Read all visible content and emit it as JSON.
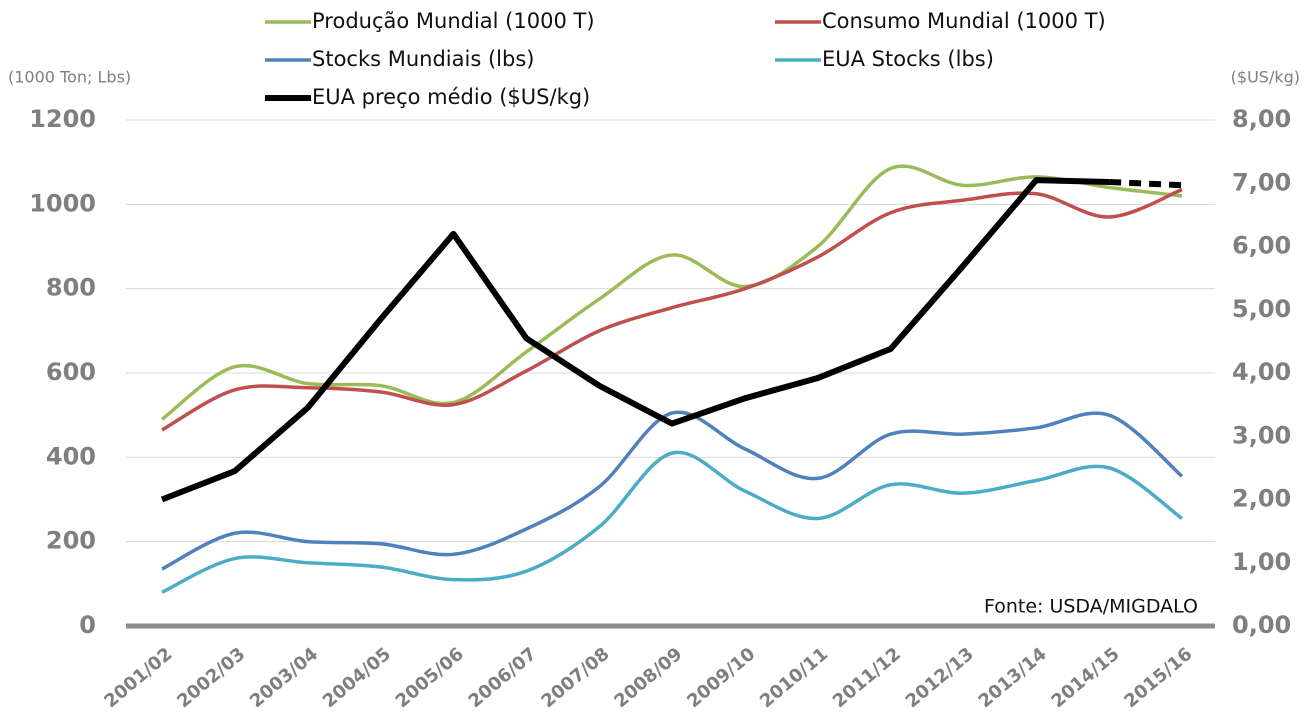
{
  "chart_data": {
    "type": "line",
    "y_label": "(1000 Ton; Lbs)",
    "y2_label": "($US/kg)",
    "annotation": "Fonte: USDA/MIGDALO",
    "categories": [
      "2001/02",
      "2002/03",
      "2003/04",
      "2004/05",
      "2005/06",
      "2006/07",
      "2007/08",
      "2008/09",
      "2009/10",
      "2010/11",
      "2011/12",
      "2012/13",
      "2013/14",
      "2014/15",
      "2015/16"
    ],
    "ylim": [
      0,
      1200
    ],
    "yticks": [
      0,
      200,
      400,
      600,
      800,
      1000,
      1200
    ],
    "y2lim": [
      0,
      8
    ],
    "y2ticks": [
      {
        "value": 0,
        "label": "0,00"
      },
      {
        "value": 1,
        "label": "1,00"
      },
      {
        "value": 2,
        "label": "2,00"
      },
      {
        "value": 3,
        "label": "3,00"
      },
      {
        "value": 4,
        "label": "4,00"
      },
      {
        "value": 5,
        "label": "5,00"
      },
      {
        "value": 6,
        "label": "6,00"
      },
      {
        "value": 7,
        "label": "7,00"
      },
      {
        "value": 8,
        "label": "8,00"
      }
    ],
    "grid": true,
    "series": [
      {
        "name": "Produção Mundial (1000 T)",
        "color": "#9bbb59",
        "smooth": true,
        "values": [
          490,
          615,
          575,
          570,
          530,
          650,
          775,
          880,
          805,
          900,
          1085,
          1045,
          1065,
          1040,
          1020
        ]
      },
      {
        "name": "Consumo Mundial (1000 T)",
        "color": "#c0504d",
        "smooth": true,
        "values": [
          465,
          560,
          565,
          555,
          525,
          605,
          700,
          755,
          800,
          875,
          980,
          1010,
          1025,
          970,
          1035
        ]
      },
      {
        "name": "Stocks Mundiais (lbs)",
        "color": "#4f81bd",
        "smooth": true,
        "values": [
          135,
          220,
          200,
          195,
          170,
          230,
          330,
          505,
          420,
          350,
          455,
          455,
          470,
          500,
          355
        ]
      },
      {
        "name": "EUA Stocks (lbs)",
        "color": "#4bacc6",
        "smooth": true,
        "values": [
          80,
          160,
          150,
          140,
          110,
          130,
          235,
          410,
          320,
          255,
          335,
          315,
          345,
          375,
          255
        ]
      },
      {
        "name": "EUA preço médio ($US/kg)",
        "color": "#000000",
        "smooth": false,
        "axis": "y2",
        "dash_last": true,
        "values": [
          2.0,
          2.45,
          3.45,
          4.85,
          6.2,
          4.55,
          3.8,
          3.2,
          3.6,
          3.92,
          4.38,
          5.7,
          7.05,
          7.02,
          6.97
        ]
      }
    ]
  }
}
